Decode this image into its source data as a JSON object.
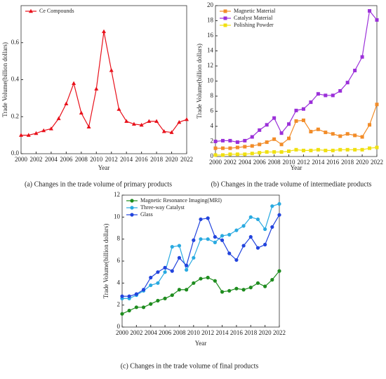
{
  "chart_data": [
    {
      "type": "line",
      "caption": "(a) Changes in the trade volume of primary products",
      "x_label": "Year",
      "y_label": "Trade Volume(billion dollars)",
      "x": [
        2000,
        2001,
        2002,
        2003,
        2004,
        2005,
        2006,
        2007,
        2008,
        2009,
        2010,
        2011,
        2012,
        2013,
        2014,
        2015,
        2016,
        2017,
        2018,
        2019,
        2020,
        2021,
        2022
      ],
      "xlim": [
        2000,
        2022
      ],
      "xticks": [
        2000,
        2002,
        2004,
        2006,
        2008,
        2010,
        2012,
        2014,
        2016,
        2018,
        2020,
        2022
      ],
      "ylim": [
        0,
        0.8
      ],
      "yticks": [
        {
          "value": 0,
          "label": "0.0"
        },
        0.2,
        0.4,
        0.6
      ],
      "legend": "upper left",
      "marker": "triangle",
      "series": [
        {
          "name": "Ce Compounds",
          "color": "#e8101a",
          "values": [
            0.1,
            0.1,
            0.11,
            0.125,
            0.135,
            0.19,
            0.27,
            0.38,
            0.22,
            0.145,
            0.35,
            0.66,
            0.45,
            0.24,
            0.175,
            0.16,
            0.155,
            0.175,
            0.175,
            0.12,
            0.115,
            0.17,
            0.185
          ]
        }
      ]
    },
    {
      "type": "line",
      "caption": "(b) Changes in the trade volume of intermediate products",
      "x_label": "Year",
      "y_label": "Trade Volume(billion dollars)",
      "x": [
        2000,
        2001,
        2002,
        2003,
        2004,
        2005,
        2006,
        2007,
        2008,
        2009,
        2010,
        2011,
        2012,
        2013,
        2014,
        2015,
        2016,
        2017,
        2018,
        2019,
        2020,
        2021,
        2022
      ],
      "xlim": [
        2000,
        2022
      ],
      "xticks": [
        2000,
        2002,
        2004,
        2006,
        2008,
        2010,
        2012,
        2014,
        2016,
        2018,
        2020,
        2022
      ],
      "ylim": [
        0,
        20
      ],
      "yticks": [
        0,
        2,
        4,
        6,
        8,
        10,
        12,
        14,
        16,
        18,
        20
      ],
      "legend": "upper left",
      "marker": "square",
      "series": [
        {
          "name": "Magnetic Material",
          "color": "#f28c28",
          "values": [
            1.1,
            1.1,
            1.1,
            1.2,
            1.3,
            1.4,
            1.6,
            1.9,
            2.3,
            1.6,
            2.4,
            4.7,
            4.8,
            3.3,
            3.6,
            3.2,
            3.0,
            2.7,
            3.0,
            2.8,
            2.6,
            4.2,
            6.9
          ]
        },
        {
          "name": "Catalyst Material",
          "color": "#9b30d9",
          "values": [
            2.0,
            2.1,
            2.1,
            1.9,
            2.1,
            2.6,
            3.5,
            4.2,
            5.1,
            3.1,
            4.3,
            6.1,
            6.3,
            7.2,
            8.3,
            8.1,
            8.1,
            8.7,
            9.8,
            11.4,
            13.2,
            19.3,
            18.1
          ]
        },
        {
          "name": "Polishing Powder",
          "color": "#f0e010",
          "values": [
            0.2,
            0.2,
            0.3,
            0.3,
            0.3,
            0.4,
            0.5,
            0.6,
            0.6,
            0.6,
            0.7,
            0.9,
            0.8,
            0.8,
            0.9,
            0.8,
            0.8,
            0.9,
            0.9,
            0.9,
            0.9,
            1.1,
            1.2
          ]
        }
      ]
    },
    {
      "type": "line",
      "caption": "(c) Changes in the trade volume of final products",
      "x_label": "Year",
      "y_label": "Trade Volume(billion dollars)",
      "x": [
        2000,
        2001,
        2002,
        2003,
        2004,
        2005,
        2006,
        2007,
        2008,
        2009,
        2010,
        2011,
        2012,
        2013,
        2014,
        2015,
        2016,
        2017,
        2018,
        2019,
        2020,
        2021,
        2022
      ],
      "xlim": [
        2000,
        2022
      ],
      "xticks": [
        2000,
        2002,
        2004,
        2006,
        2008,
        2010,
        2012,
        2014,
        2016,
        2018,
        2020,
        2022
      ],
      "ylim": [
        0,
        12
      ],
      "yticks": [
        0,
        2,
        4,
        6,
        8,
        10,
        12
      ],
      "legend": "upper left",
      "marker": "circle",
      "series": [
        {
          "name": "Magnetic Resonance Imaging(MRI)",
          "color": "#1e8c1e",
          "values": [
            1.2,
            1.5,
            1.8,
            1.8,
            2.1,
            2.4,
            2.6,
            2.9,
            3.4,
            3.4,
            4.0,
            4.4,
            4.5,
            4.2,
            3.2,
            3.3,
            3.5,
            3.4,
            3.6,
            4.0,
            3.7,
            4.3,
            5.1
          ]
        },
        {
          "name": "Three-way Catalyst",
          "color": "#29aae1",
          "values": [
            2.6,
            2.6,
            2.9,
            3.3,
            3.8,
            4.0,
            5.0,
            7.3,
            7.4,
            5.2,
            6.3,
            8.0,
            8.0,
            7.7,
            8.3,
            8.4,
            8.8,
            9.2,
            10.0,
            9.8,
            8.9,
            11.0,
            11.2
          ]
        },
        {
          "name": "Glass",
          "color": "#2244dd",
          "values": [
            2.8,
            2.8,
            3.0,
            3.4,
            4.5,
            5.0,
            5.4,
            5.1,
            6.3,
            5.6,
            7.9,
            9.8,
            9.9,
            8.2,
            7.9,
            6.7,
            6.1,
            7.4,
            8.2,
            7.2,
            7.5,
            9.1,
            10.2
          ]
        }
      ]
    }
  ]
}
